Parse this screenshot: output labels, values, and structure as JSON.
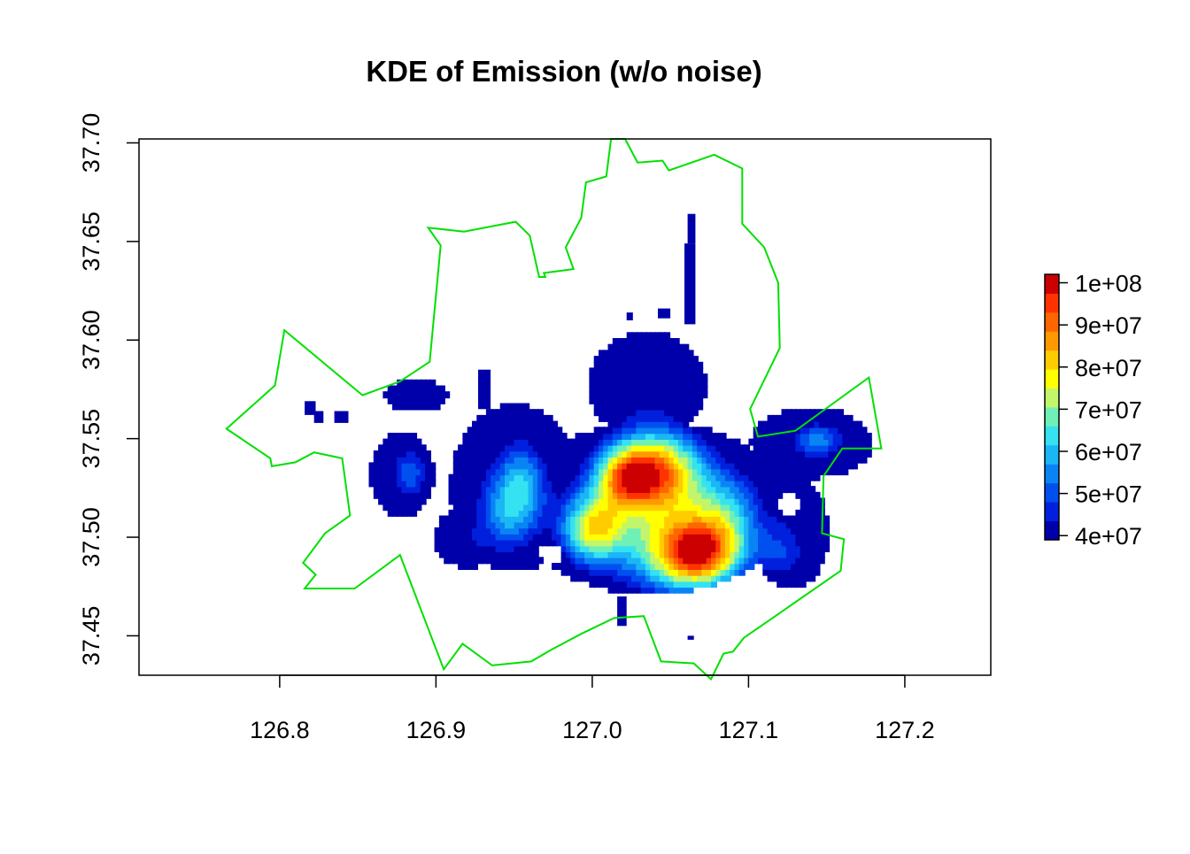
{
  "chart_data": {
    "type": "heatmap",
    "title": "KDE of Emission (w/o noise)",
    "xlabel": "",
    "ylabel": "",
    "xlim": [
      126.71,
      127.255
    ],
    "ylim": [
      37.43,
      37.702
    ],
    "x_ticks": [
      "126.8",
      "126.9",
      "127.0",
      "127.1",
      "127.2"
    ],
    "x_tick_values": [
      126.8,
      126.9,
      127.0,
      127.1,
      127.2
    ],
    "y_ticks": [
      "37.45",
      "37.50",
      "37.55",
      "37.60",
      "37.65",
      "37.70"
    ],
    "y_tick_values": [
      37.45,
      37.5,
      37.55,
      37.6,
      37.65,
      37.7
    ],
    "legend": {
      "position": "right",
      "labels": [
        "4e+07",
        "5e+07",
        "6e+07",
        "7e+07",
        "8e+07",
        "9e+07",
        "1e+08"
      ],
      "label_values": [
        40000000,
        50000000,
        60000000,
        70000000,
        80000000,
        90000000,
        100000000
      ],
      "range": [
        39000000,
        102000000
      ],
      "colors": [
        "#0000aa",
        "#0020dd",
        "#0050f0",
        "#0a84f5",
        "#1ab6f6",
        "#34e2f2",
        "#6ff0b6",
        "#c2f56a",
        "#ffff00",
        "#ffcc00",
        "#ff9900",
        "#ff6600",
        "#ff3300",
        "#cc0000"
      ]
    },
    "boundary_color": "#00e000",
    "boundary": [
      [
        126.766,
        37.555
      ],
      [
        126.797,
        37.577
      ],
      [
        126.803,
        37.605
      ],
      [
        126.853,
        37.572
      ],
      [
        126.877,
        37.579
      ],
      [
        126.896,
        37.589
      ],
      [
        126.903,
        37.648
      ],
      [
        126.895,
        37.657
      ],
      [
        126.918,
        37.655
      ],
      [
        126.951,
        37.66
      ],
      [
        126.96,
        37.653
      ],
      [
        126.966,
        37.632
      ],
      [
        126.97,
        37.632
      ],
      [
        126.969,
        37.634
      ],
      [
        126.988,
        37.636
      ],
      [
        126.983,
        37.647
      ],
      [
        126.993,
        37.662
      ],
      [
        126.996,
        37.68
      ],
      [
        127.009,
        37.683
      ],
      [
        127.012,
        37.702
      ],
      [
        127.021,
        37.702
      ],
      [
        127.029,
        37.69
      ],
      [
        127.045,
        37.691
      ],
      [
        127.049,
        37.686
      ],
      [
        127.078,
        37.694
      ],
      [
        127.096,
        37.687
      ],
      [
        127.096,
        37.659
      ],
      [
        127.11,
        37.647
      ],
      [
        127.119,
        37.629
      ],
      [
        127.12,
        37.596
      ],
      [
        127.101,
        37.565
      ],
      [
        127.106,
        37.551
      ],
      [
        127.13,
        37.554
      ],
      [
        127.177,
        37.581
      ],
      [
        127.185,
        37.545
      ],
      [
        127.16,
        37.545
      ],
      [
        127.148,
        37.531
      ],
      [
        127.147,
        37.502
      ],
      [
        127.161,
        37.499
      ],
      [
        127.159,
        37.483
      ],
      [
        127.119,
        37.461
      ],
      [
        127.097,
        37.449
      ],
      [
        127.09,
        37.442
      ],
      [
        127.084,
        37.441
      ],
      [
        127.076,
        37.428
      ],
      [
        127.065,
        37.436
      ],
      [
        127.044,
        37.437
      ],
      [
        127.033,
        37.46
      ],
      [
        127.014,
        37.459
      ],
      [
        126.993,
        37.451
      ],
      [
        126.974,
        37.443
      ],
      [
        126.961,
        37.437
      ],
      [
        126.936,
        37.435
      ],
      [
        126.917,
        37.446
      ],
      [
        126.905,
        37.433
      ],
      [
        126.877,
        37.491
      ],
      [
        126.848,
        37.474
      ],
      [
        126.816,
        37.474
      ],
      [
        126.823,
        37.481
      ],
      [
        126.815,
        37.487
      ],
      [
        126.829,
        37.502
      ],
      [
        126.845,
        37.511
      ],
      [
        126.84,
        37.54
      ],
      [
        126.822,
        37.543
      ],
      [
        126.81,
        37.538
      ],
      [
        126.795,
        37.536
      ],
      [
        126.794,
        37.54
      ]
    ],
    "kde_peaks": [
      {
        "lon": 127.066,
        "lat": 37.492,
        "sx": 0.02,
        "sy": 0.013,
        "value": 60000000
      },
      {
        "lon": 127.04,
        "lat": 37.534,
        "sx": 0.021,
        "sy": 0.015,
        "value": 52000000
      },
      {
        "lon": 127.02,
        "lat": 37.531,
        "sx": 0.013,
        "sy": 0.01,
        "value": 25000000
      },
      {
        "lon": 127.0,
        "lat": 37.505,
        "sx": 0.014,
        "sy": 0.012,
        "value": 38000000
      },
      {
        "lon": 127.085,
        "lat": 37.512,
        "sx": 0.018,
        "sy": 0.016,
        "value": 22000000
      },
      {
        "lon": 126.955,
        "lat": 37.525,
        "sx": 0.011,
        "sy": 0.016,
        "value": 22000000
      },
      {
        "lon": 126.94,
        "lat": 37.51,
        "sx": 0.012,
        "sy": 0.015,
        "value": 14000000
      },
      {
        "lon": 126.885,
        "lat": 37.533,
        "sx": 0.008,
        "sy": 0.01,
        "value": 13000000
      },
      {
        "lon": 127.145,
        "lat": 37.55,
        "sx": 0.011,
        "sy": 0.006,
        "value": 16000000
      },
      {
        "lon": 127.12,
        "lat": 37.49,
        "sx": 0.012,
        "sy": 0.01,
        "value": 9000000
      },
      {
        "lon": 127.03,
        "lat": 37.5,
        "sx": 0.022,
        "sy": 0.022,
        "value": 14000000
      }
    ],
    "kde_base_value": 32000000,
    "kde_base_blobs": [
      {
        "lon": 127.038,
        "lat": 37.515,
        "sx": 0.075,
        "sy": 0.037
      },
      {
        "lon": 126.95,
        "lat": 37.525,
        "sx": 0.035,
        "sy": 0.036
      },
      {
        "lon": 126.878,
        "lat": 37.532,
        "sx": 0.017,
        "sy": 0.018
      },
      {
        "lon": 126.887,
        "lat": 37.572,
        "sx": 0.017,
        "sy": 0.007
      },
      {
        "lon": 127.14,
        "lat": 37.548,
        "sx": 0.033,
        "sy": 0.015
      },
      {
        "lon": 127.035,
        "lat": 37.577,
        "sx": 0.032,
        "sy": 0.023
      },
      {
        "lon": 126.92,
        "lat": 37.5,
        "sx": 0.018,
        "sy": 0.013
      },
      {
        "lon": 127.127,
        "lat": 37.503,
        "sx": 0.02,
        "sy": 0.025
      }
    ],
    "kde_isolated_patches": [
      {
        "lon0": 127.059,
        "lon1": 127.066,
        "lat0": 37.608,
        "lat1": 37.649
      },
      {
        "lon0": 127.061,
        "lon1": 127.066,
        "lat0": 37.649,
        "lat1": 37.664
      },
      {
        "lon0": 127.042,
        "lon1": 127.05,
        "lat0": 37.611,
        "lat1": 37.616
      },
      {
        "lon0": 127.022,
        "lon1": 127.026,
        "lat0": 37.61,
        "lat1": 37.614
      },
      {
        "lon0": 126.927,
        "lon1": 126.935,
        "lat0": 37.565,
        "lat1": 37.585
      },
      {
        "lon0": 126.816,
        "lon1": 126.823,
        "lat0": 37.562,
        "lat1": 37.569
      },
      {
        "lon0": 126.822,
        "lon1": 126.828,
        "lat0": 37.558,
        "lat1": 37.564
      },
      {
        "lon0": 126.835,
        "lon1": 126.844,
        "lat0": 37.558,
        "lat1": 37.564
      },
      {
        "lon0": 127.061,
        "lon1": 127.065,
        "lat0": 37.448,
        "lat1": 37.45
      },
      {
        "lon0": 127.016,
        "lon1": 127.022,
        "lat0": 37.455,
        "lat1": 37.47
      }
    ],
    "kde_holes": [
      {
        "lon": 127.125,
        "lat": 37.517,
        "sx": 0.006,
        "sy": 0.006
      },
      {
        "lon": 126.973,
        "lat": 37.492,
        "sx": 0.007,
        "sy": 0.004
      }
    ]
  }
}
